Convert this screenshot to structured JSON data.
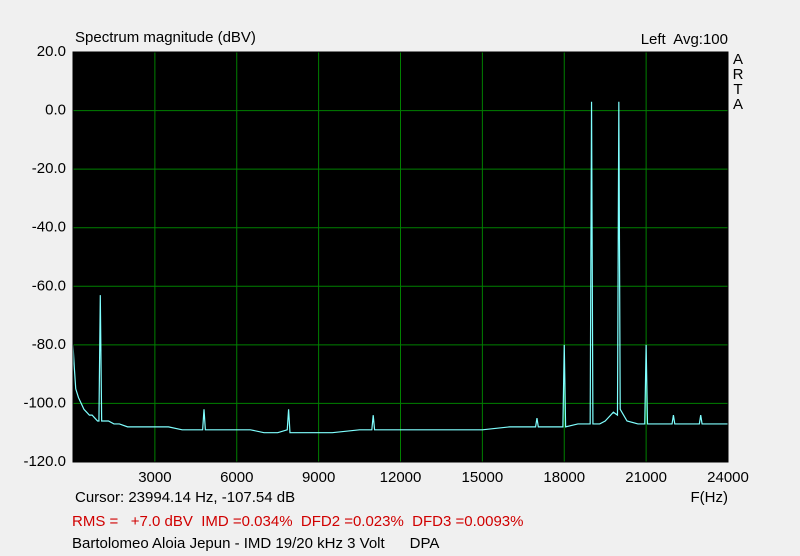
{
  "chart_data": {
    "type": "line",
    "title": "Spectrum magnitude (dBV)",
    "channel_info": "Left  Avg:100",
    "brand": "ARTA",
    "annotation": "3 Volt",
    "cursor": "Cursor: 23994.14 Hz, -107.54 dB",
    "x_label": "F(Hz)",
    "measurements": "RMS =   +7.0 dBV  IMD =0.034%  DFD2 =0.023%  DFD3 =0.0093%",
    "caption": "Bartolomeo Aloia Jepun - IMD 19/20 kHz 3 Volt      DPA",
    "xlim": [
      0,
      24000
    ],
    "ylim": [
      -120,
      20
    ],
    "xticks": [
      3000,
      6000,
      9000,
      12000,
      15000,
      18000,
      21000,
      24000
    ],
    "yticks": [
      {
        "value": 20,
        "label": "20.0"
      },
      {
        "value": 0,
        "label": "0.0"
      },
      {
        "value": -20,
        "label": "-20.0"
      },
      {
        "value": -40,
        "label": "-40.0"
      },
      {
        "value": -60,
        "label": "-60.0"
      },
      {
        "value": -80,
        "label": "-80.0"
      },
      {
        "value": -100,
        "label": "-100.0"
      },
      {
        "value": -120,
        "label": "-120.0"
      }
    ],
    "grid": true,
    "background": "#000000",
    "grid_color": "#008000",
    "x": [
      0,
      50,
      100,
      200,
      300,
      400,
      500,
      600,
      700,
      800,
      900,
      950,
      1000,
      1050,
      1100,
      1300,
      1500,
      1700,
      2000,
      2500,
      3000,
      3500,
      4000,
      4500,
      4750,
      4800,
      4850,
      5500,
      6500,
      7000,
      7500,
      7850,
      7900,
      7950,
      8500,
      9500,
      10500,
      10950,
      11000,
      11050,
      12000,
      13000,
      14000,
      15000,
      16000,
      16500,
      16950,
      17000,
      17050,
      17500,
      17950,
      18000,
      18050,
      18500,
      18950,
      19000,
      19050,
      19300,
      19500,
      19700,
      19800,
      19950,
      20000,
      20050,
      20300,
      20700,
      20950,
      21000,
      21050,
      21500,
      21950,
      22000,
      22050,
      22500,
      22950,
      23000,
      23050,
      23500,
      24000
    ],
    "series": [
      {
        "name": "Left",
        "color": "#80ffff",
        "values": [
          -80,
          -88,
          -95,
          -98,
          -100,
          -102,
          -103,
          -104,
          -104,
          -105,
          -106,
          -106,
          -63,
          -106,
          -106,
          -106,
          -107,
          -107,
          -108,
          -108,
          -108,
          -108,
          -109,
          -109,
          -109,
          -102,
          -109,
          -109,
          -109,
          -110,
          -110,
          -109,
          -102,
          -110,
          -110,
          -110,
          -109,
          -109,
          -104,
          -109,
          -109,
          -109,
          -109,
          -109,
          -108,
          -108,
          -108,
          -105,
          -108,
          -108,
          -108,
          -80,
          -108,
          -107,
          -107,
          3,
          -107,
          -107,
          -106,
          -104,
          -103,
          -104,
          3,
          -102,
          -106,
          -107,
          -107,
          -80,
          -107,
          -107,
          -107,
          -104,
          -107,
          -107,
          -107,
          -104,
          -107,
          -107,
          -107
        ]
      }
    ]
  }
}
